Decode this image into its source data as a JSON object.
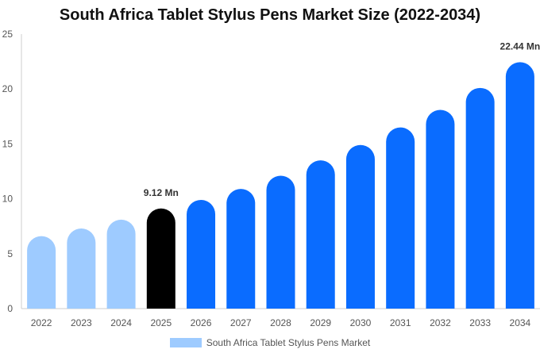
{
  "chart_data": {
    "type": "bar",
    "title": "South Africa Tablet Stylus Pens Market Size (2022-2034)",
    "xlabel": "",
    "ylabel": "",
    "categories": [
      "2022",
      "2023",
      "2024",
      "2025",
      "2026",
      "2027",
      "2028",
      "2029",
      "2030",
      "2031",
      "2032",
      "2033",
      "2034"
    ],
    "series": [
      {
        "name": "South Africa Tablet Stylus Pens Market",
        "values": [
          6.6,
          7.3,
          8.1,
          9.12,
          9.9,
          10.9,
          12.1,
          13.5,
          14.9,
          16.5,
          18.1,
          20.1,
          22.44
        ]
      }
    ],
    "ylim": [
      0,
      25
    ],
    "yticks": [
      0,
      5,
      10,
      15,
      20,
      25
    ],
    "grid": false,
    "legend_position": "bottom-center",
    "data_labels": [
      {
        "category": "2025",
        "text": "9.12 Mn"
      },
      {
        "category": "2034",
        "text": "22.44 Mn"
      }
    ],
    "colors": {
      "historical": "#9ecbff",
      "current": "#000000",
      "forecast": "#0a6cff",
      "legend_swatch": "#9ecbff",
      "axis": "#cccccc",
      "tick_text": "#555555",
      "label_text": "#333333"
    },
    "segments": {
      "historical": [
        "2022",
        "2023",
        "2024"
      ],
      "current": [
        "2025"
      ],
      "forecast": [
        "2026",
        "2027",
        "2028",
        "2029",
        "2030",
        "2031",
        "2032",
        "2033",
        "2034"
      ]
    }
  }
}
